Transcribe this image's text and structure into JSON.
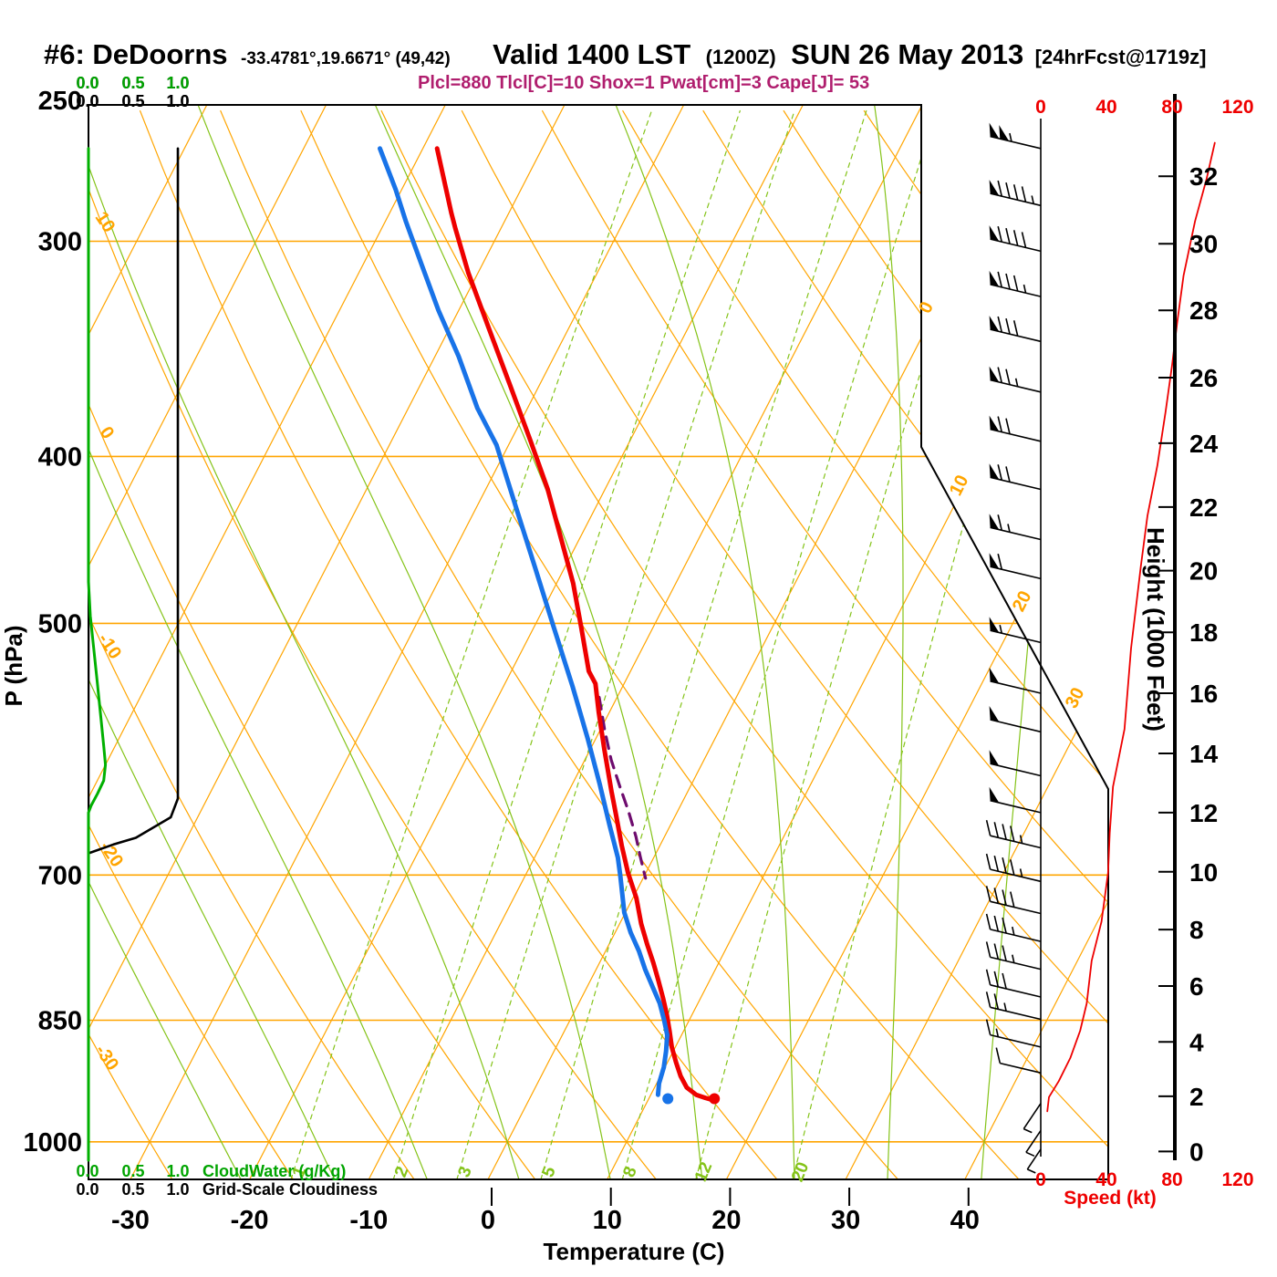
{
  "title": {
    "station": "#6: DeDoorns",
    "coords": "-33.4781°,19.6671° (49,42)",
    "valid": "Valid 1400 LST",
    "zulu": "(1200Z)",
    "date": "SUN 26 May 2013",
    "forecast": "[24hrFcst@1719z]"
  },
  "params_line": "Plcl=880 Tlcl[C]=10 Shox=1 Pwat[cm]=3 Cape[J]= 53",
  "colors": {
    "grid_orange": "#ffa500",
    "grid_green": "#84c318",
    "cloud_green": "#00b000",
    "scale_green": "#00a400",
    "temperature_red": "#ee0000",
    "dewpoint_blue": "#1873e8",
    "parcel_purple": "#6e0c6e",
    "params_magenta": "#b01e6e",
    "axis_black": "#000000"
  },
  "legend": {
    "cloudwater": {
      "scale": [
        "0.0",
        "0.5",
        "1.0"
      ],
      "label": "CloudWater (g/Kg)"
    },
    "cloudiness": {
      "scale": [
        "0.0",
        "0.5",
        "1.0"
      ],
      "label": "Grid-Scale Cloudiness"
    }
  },
  "axes": {
    "pressure": {
      "label": "P (hPa)",
      "ticks": [
        250,
        300,
        400,
        500,
        700,
        850,
        1000
      ]
    },
    "temperature": {
      "label": "Temperature (C)",
      "ticks": [
        -30,
        -20,
        -10,
        0,
        10,
        20,
        30,
        40
      ]
    },
    "height": {
      "label": "Height (1000 Feet)",
      "ticks": [
        {
          "kft": 0,
          "p": 1013
        },
        {
          "kft": 2,
          "p": 941
        },
        {
          "kft": 4,
          "p": 875
        },
        {
          "kft": 6,
          "p": 812
        },
        {
          "kft": 8,
          "p": 753
        },
        {
          "kft": 10,
          "p": 697
        },
        {
          "kft": 12,
          "p": 644
        },
        {
          "kft": 14,
          "p": 595
        },
        {
          "kft": 16,
          "p": 549
        },
        {
          "kft": 18,
          "p": 506
        },
        {
          "kft": 20,
          "p": 466
        },
        {
          "kft": 22,
          "p": 428
        },
        {
          "kft": 24,
          "p": 393
        },
        {
          "kft": 26,
          "p": 360
        },
        {
          "kft": 28,
          "p": 329
        },
        {
          "kft": 30,
          "p": 301
        },
        {
          "kft": 32,
          "p": 275
        }
      ]
    },
    "speed": {
      "label": "Speed (kt)",
      "ticks": [
        0,
        40,
        80,
        120
      ]
    }
  },
  "chart_data": {
    "type": "skewt_log_p_sounding",
    "pressure_range_hpa": [
      250,
      1052
    ],
    "grid": {
      "isotherms_c": {
        "min": -110,
        "max": 40,
        "step": 10
      },
      "isotherm_edge_labels": [
        0,
        10,
        20,
        30
      ],
      "dry_adiabats_c": {
        "min": -40,
        "max": 120,
        "step": 10
      },
      "dry_adiabat_edge_labels": [
        10,
        0,
        -10,
        -20,
        -30
      ],
      "moist_adiabats_c_at_1000": [
        -24,
        -16,
        -8,
        0,
        8,
        16,
        24,
        32,
        40
      ],
      "mixing_ratio_lines_gkg": [
        1,
        2,
        3,
        5,
        8,
        12,
        20
      ]
    },
    "temperature_profile": [
      [
        265,
        -48.8
      ],
      [
        289,
        -44.8
      ],
      [
        295,
        -43.8
      ],
      [
        313,
        -40.8
      ],
      [
        337,
        -36.7
      ],
      [
        364,
        -32.4
      ],
      [
        392,
        -28.3
      ],
      [
        418,
        -24.8
      ],
      [
        446,
        -21.6
      ],
      [
        474,
        -18.6
      ],
      [
        503,
        -16.0
      ],
      [
        533,
        -13.5
      ],
      [
        542,
        -12.4
      ],
      [
        563,
        -10.9
      ],
      [
        592,
        -8.8
      ],
      [
        626,
        -6.4
      ],
      [
        646,
        -5.0
      ],
      [
        673,
        -3.2
      ],
      [
        698,
        -1.5
      ],
      [
        722,
        0.3
      ],
      [
        747,
        1.8
      ],
      [
        768,
        3.2
      ],
      [
        787,
        4.5
      ],
      [
        806,
        5.7
      ],
      [
        826,
        6.9
      ],
      [
        844,
        7.9
      ],
      [
        862,
        8.8
      ],
      [
        881,
        9.7
      ],
      [
        899,
        10.7
      ],
      [
        916,
        11.7
      ],
      [
        930,
        12.7
      ],
      [
        939,
        13.8
      ],
      [
        943,
        14.7
      ],
      [
        946,
        15.5
      ]
    ],
    "dewpoint_profile": [
      [
        265,
        -53.6
      ],
      [
        280,
        -50.5
      ],
      [
        292,
        -48.3
      ],
      [
        310,
        -45.0
      ],
      [
        329,
        -41.7
      ],
      [
        350,
        -38.0
      ],
      [
        375,
        -34.2
      ],
      [
        394,
        -31.0
      ],
      [
        428,
        -26.7
      ],
      [
        463,
        -22.6
      ],
      [
        502,
        -18.4
      ],
      [
        544,
        -14.2
      ],
      [
        583,
        -10.7
      ],
      [
        620,
        -7.7
      ],
      [
        655,
        -5.1
      ],
      [
        684,
        -3.0
      ],
      [
        701,
        -2.0
      ],
      [
        736,
        -0.1
      ],
      [
        756,
        1.3
      ],
      [
        775,
        2.8
      ],
      [
        794,
        4.1
      ],
      [
        813,
        5.5
      ],
      [
        831,
        6.8
      ],
      [
        850,
        7.9
      ],
      [
        867,
        8.8
      ],
      [
        886,
        9.4
      ],
      [
        905,
        9.9
      ],
      [
        925,
        10.2
      ],
      [
        939,
        10.6
      ]
    ],
    "surface": {
      "pressure_hpa": 944,
      "temp_c": 15.5,
      "dewpoint_c": 11.6
    },
    "parcel_path": [
      [
        552,
        -11.5
      ],
      [
        577,
        -9.6
      ],
      [
        600,
        -7.8
      ],
      [
        622,
        -5.9
      ],
      [
        643,
        -4.1
      ],
      [
        665,
        -2.4
      ],
      [
        684,
        -1.1
      ],
      [
        703,
        0.2
      ]
    ],
    "wind_speed_profile_kt": [
      [
        263,
        106
      ],
      [
        276,
        101
      ],
      [
        292,
        94
      ],
      [
        314,
        87
      ],
      [
        335,
        83
      ],
      [
        354,
        80
      ],
      [
        377,
        76
      ],
      [
        405,
        71
      ],
      [
        433,
        65
      ],
      [
        463,
        61
      ],
      [
        517,
        55
      ],
      [
        576,
        51
      ],
      [
        622,
        44
      ],
      [
        662,
        42
      ],
      [
        698,
        41
      ],
      [
        745,
        37
      ],
      [
        785,
        31
      ],
      [
        831,
        28
      ],
      [
        862,
        24
      ],
      [
        894,
        18
      ],
      [
        922,
        11
      ],
      [
        942,
        5
      ],
      [
        960,
        4
      ]
    ],
    "wind_barbs": [
      {
        "p": 265,
        "kt": 105
      },
      {
        "p": 286,
        "kt": 95
      },
      {
        "p": 304,
        "kt": 90
      },
      {
        "p": 323,
        "kt": 85
      },
      {
        "p": 343,
        "kt": 80
      },
      {
        "p": 367,
        "kt": 75
      },
      {
        "p": 392,
        "kt": 72
      },
      {
        "p": 418,
        "kt": 68
      },
      {
        "p": 447,
        "kt": 63
      },
      {
        "p": 471,
        "kt": 58
      },
      {
        "p": 513,
        "kt": 55
      },
      {
        "p": 549,
        "kt": 52
      },
      {
        "p": 578,
        "kt": 50
      },
      {
        "p": 613,
        "kt": 50
      },
      {
        "p": 644,
        "kt": 48
      },
      {
        "p": 675,
        "kt": 45
      },
      {
        "p": 706,
        "kt": 43
      },
      {
        "p": 737,
        "kt": 40
      },
      {
        "p": 765,
        "kt": 37
      },
      {
        "p": 794,
        "kt": 33
      },
      {
        "p": 824,
        "kt": 30
      },
      {
        "p": 849,
        "kt": 27
      },
      {
        "p": 881,
        "kt": 15
      },
      {
        "p": 912,
        "kt": 10
      },
      {
        "p": 950,
        "kt": 5,
        "dir": "S"
      },
      {
        "p": 985,
        "kt": 3,
        "dir": "S"
      },
      {
        "p": 1010,
        "kt": 2,
        "dir": "S"
      }
    ],
    "cloud_water_profile_gkg": [
      [
        265,
        0
      ],
      [
        473,
        0
      ],
      [
        495,
        0.02
      ],
      [
        542,
        0.1
      ],
      [
        568,
        0.14
      ],
      [
        589,
        0.17
      ],
      [
        604,
        0.19
      ],
      [
        617,
        0.17
      ],
      [
        628,
        0.1
      ],
      [
        638,
        0.03
      ],
      [
        644,
        0
      ],
      [
        1025,
        0
      ]
    ],
    "cloudiness_profile": [
      [
        265,
        1.0
      ],
      [
        632,
        1.0
      ],
      [
        648,
        0.92
      ],
      [
        666,
        0.53
      ],
      [
        672,
        0.28
      ],
      [
        680,
        0
      ]
    ],
    "cloudiness_zero_segment": [
      [
        473,
        0
      ],
      [
        640,
        0
      ]
    ]
  }
}
